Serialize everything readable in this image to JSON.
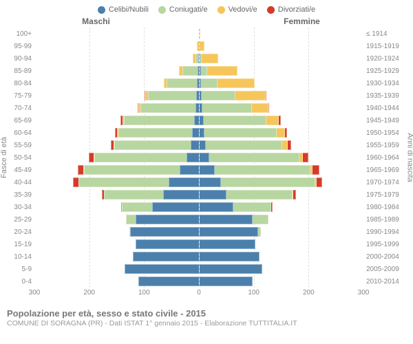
{
  "chart": {
    "type": "population_pyramid",
    "legend": [
      {
        "label": "Celibi/Nubili",
        "color": "#4b80ac"
      },
      {
        "label": "Coniugati/e",
        "color": "#b8d6a0"
      },
      {
        "label": "Vedovi/e",
        "color": "#f6c65b"
      },
      {
        "label": "Divorziati/e",
        "color": "#d63a2a"
      }
    ],
    "header_male": "Maschi",
    "header_female": "Femmine",
    "y_title_left": "Fasce di età",
    "y_title_right": "Anni di nascita",
    "x_max": 300,
    "x_ticks": [
      300,
      200,
      100,
      0,
      100,
      200,
      300
    ],
    "categories": [
      {
        "age": "100+",
        "birth": "≤ 1914",
        "m": [
          0,
          0,
          0,
          0
        ],
        "f": [
          0,
          0,
          2,
          0
        ]
      },
      {
        "age": "95-99",
        "birth": "1915-1919",
        "m": [
          0,
          0,
          3,
          0
        ],
        "f": [
          0,
          0,
          9,
          0
        ]
      },
      {
        "age": "90-94",
        "birth": "1920-1924",
        "m": [
          1,
          5,
          4,
          0
        ],
        "f": [
          2,
          2,
          30,
          0
        ]
      },
      {
        "age": "85-89",
        "birth": "1925-1929",
        "m": [
          2,
          28,
          6,
          0
        ],
        "f": [
          3,
          12,
          55,
          0
        ]
      },
      {
        "age": "80-84",
        "birth": "1930-1934",
        "m": [
          3,
          55,
          6,
          0
        ],
        "f": [
          3,
          30,
          68,
          0
        ]
      },
      {
        "age": "75-79",
        "birth": "1935-1939",
        "m": [
          4,
          88,
          6,
          1
        ],
        "f": [
          4,
          62,
          55,
          2
        ]
      },
      {
        "age": "70-74",
        "birth": "1940-1944",
        "m": [
          6,
          100,
          4,
          2
        ],
        "f": [
          6,
          90,
          30,
          2
        ]
      },
      {
        "age": "65-69",
        "birth": "1945-1949",
        "m": [
          8,
          128,
          3,
          4
        ],
        "f": [
          8,
          115,
          22,
          4
        ]
      },
      {
        "age": "60-64",
        "birth": "1950-1954",
        "m": [
          12,
          135,
          2,
          4
        ],
        "f": [
          10,
          132,
          14,
          5
        ]
      },
      {
        "age": "55-59",
        "birth": "1955-1959",
        "m": [
          14,
          140,
          1,
          5
        ],
        "f": [
          12,
          140,
          10,
          6
        ]
      },
      {
        "age": "50-54",
        "birth": "1960-1964",
        "m": [
          22,
          168,
          1,
          9
        ],
        "f": [
          18,
          165,
          6,
          11
        ]
      },
      {
        "age": "45-49",
        "birth": "1965-1969",
        "m": [
          35,
          175,
          1,
          9
        ],
        "f": [
          28,
          175,
          4,
          13
        ]
      },
      {
        "age": "40-44",
        "birth": "1970-1974",
        "m": [
          55,
          165,
          0,
          10
        ],
        "f": [
          40,
          172,
          2,
          11
        ]
      },
      {
        "age": "35-39",
        "birth": "1975-1979",
        "m": [
          65,
          108,
          0,
          4
        ],
        "f": [
          50,
          120,
          1,
          5
        ]
      },
      {
        "age": "30-34",
        "birth": "1980-1984",
        "m": [
          85,
          55,
          0,
          1
        ],
        "f": [
          62,
          70,
          0,
          2
        ]
      },
      {
        "age": "25-29",
        "birth": "1985-1989",
        "m": [
          115,
          18,
          0,
          0
        ],
        "f": [
          98,
          28,
          0,
          0
        ]
      },
      {
        "age": "20-24",
        "birth": "1990-1994",
        "m": [
          125,
          2,
          0,
          0
        ],
        "f": [
          108,
          4,
          0,
          0
        ]
      },
      {
        "age": "15-19",
        "birth": "1995-1999",
        "m": [
          115,
          0,
          0,
          0
        ],
        "f": [
          102,
          0,
          0,
          0
        ]
      },
      {
        "age": "10-14",
        "birth": "2000-2004",
        "m": [
          120,
          0,
          0,
          0
        ],
        "f": [
          110,
          0,
          0,
          0
        ]
      },
      {
        "age": "5-9",
        "birth": "2005-2009",
        "m": [
          135,
          0,
          0,
          0
        ],
        "f": [
          115,
          0,
          0,
          0
        ]
      },
      {
        "age": "0-4",
        "birth": "2010-2014",
        "m": [
          110,
          0,
          0,
          0
        ],
        "f": [
          98,
          0,
          0,
          0
        ]
      }
    ],
    "title": "Popolazione per età, sesso e stato civile - 2015",
    "subtitle": "COMUNE DI SORAGNA (PR) - Dati ISTAT 1° gennaio 2015 - Elaborazione TUTTITALIA.IT",
    "background_color": "#ffffff",
    "grid_color": "#e0e0e0",
    "label_color": "#888888",
    "label_fontsize": 10
  }
}
